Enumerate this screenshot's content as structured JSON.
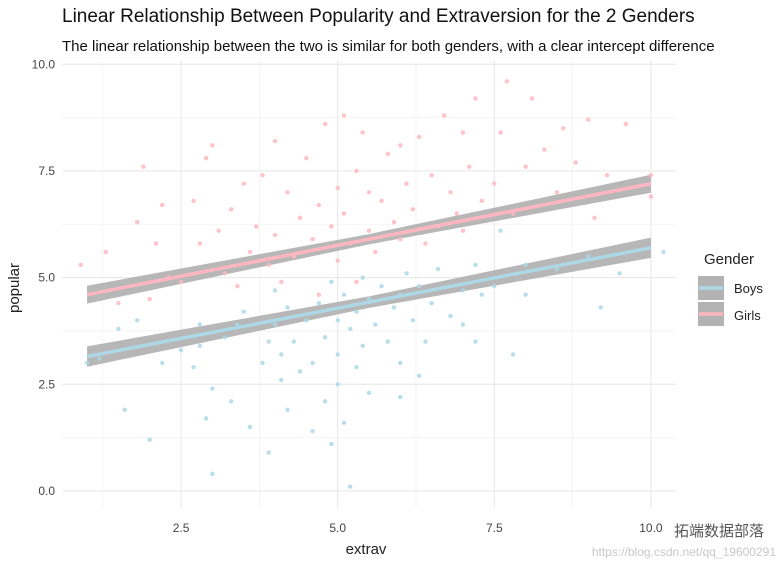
{
  "chart_data": {
    "type": "scatter",
    "title": "Linear Relationship Between Popularity and Extraversion for the 2 Genders",
    "subtitle": "The linear relationship between the two is similar for both genders, with a clear intercept difference",
    "xlabel": "extrav",
    "ylabel": "popular",
    "xlim": [
      0.6,
      10.4
    ],
    "ylim": [
      -0.4,
      10.1
    ],
    "x_ticks": [
      2.5,
      5.0,
      7.5,
      10.0
    ],
    "x_tick_labels": [
      "2.5",
      "5.0",
      "7.5",
      "10.0"
    ],
    "y_ticks": [
      0.0,
      2.5,
      5.0,
      7.5,
      10.0
    ],
    "y_tick_labels": [
      "0.0",
      "2.5",
      "5.0",
      "7.5",
      "10.0"
    ],
    "grid": true,
    "legend": {
      "title": "Gender",
      "position": "right"
    },
    "series": [
      {
        "name": "Boys",
        "color": "#add8e6",
        "fit": {
          "x": [
            1.0,
            10.0
          ],
          "y": [
            3.15,
            5.7
          ],
          "se_band": 0.17
        },
        "points": [
          [
            1.0,
            3.0
          ],
          [
            1.2,
            3.1
          ],
          [
            1.5,
            3.8
          ],
          [
            1.8,
            4.0
          ],
          [
            2.0,
            1.2
          ],
          [
            1.6,
            1.9
          ],
          [
            2.2,
            3.0
          ],
          [
            2.5,
            3.3
          ],
          [
            2.7,
            2.9
          ],
          [
            2.8,
            3.4
          ],
          [
            2.9,
            1.7
          ],
          [
            3.0,
            2.4
          ],
          [
            3.0,
            0.4
          ],
          [
            2.8,
            3.9
          ],
          [
            3.2,
            3.6
          ],
          [
            3.3,
            2.1
          ],
          [
            3.4,
            3.9
          ],
          [
            3.5,
            4.2
          ],
          [
            3.6,
            1.5
          ],
          [
            3.8,
            3.0
          ],
          [
            3.9,
            3.5
          ],
          [
            3.9,
            0.9
          ],
          [
            4.0,
            3.9
          ],
          [
            4.0,
            4.7
          ],
          [
            4.1,
            2.6
          ],
          [
            4.1,
            3.2
          ],
          [
            4.2,
            4.3
          ],
          [
            4.2,
            1.9
          ],
          [
            4.3,
            3.5
          ],
          [
            4.4,
            2.8
          ],
          [
            4.5,
            4.0
          ],
          [
            4.6,
            3.0
          ],
          [
            4.6,
            1.4
          ],
          [
            4.7,
            4.4
          ],
          [
            4.8,
            3.6
          ],
          [
            4.8,
            2.1
          ],
          [
            4.9,
            4.9
          ],
          [
            4.9,
            1.1
          ],
          [
            5.0,
            4.0
          ],
          [
            5.0,
            3.2
          ],
          [
            5.0,
            2.5
          ],
          [
            5.1,
            4.6
          ],
          [
            5.1,
            1.6
          ],
          [
            5.2,
            3.8
          ],
          [
            5.2,
            0.1
          ],
          [
            5.3,
            4.2
          ],
          [
            5.3,
            2.9
          ],
          [
            5.4,
            5.0
          ],
          [
            5.4,
            3.4
          ],
          [
            5.5,
            4.5
          ],
          [
            5.5,
            2.3
          ],
          [
            5.6,
            3.9
          ],
          [
            5.7,
            4.8
          ],
          [
            5.8,
            3.5
          ],
          [
            5.9,
            4.3
          ],
          [
            6.0,
            4.6
          ],
          [
            6.0,
            3.0
          ],
          [
            6.0,
            2.2
          ],
          [
            6.1,
            5.1
          ],
          [
            6.2,
            4.0
          ],
          [
            6.3,
            4.8
          ],
          [
            6.3,
            2.7
          ],
          [
            6.4,
            3.5
          ],
          [
            6.5,
            4.4
          ],
          [
            6.6,
            5.2
          ],
          [
            6.8,
            4.1
          ],
          [
            7.0,
            4.7
          ],
          [
            7.0,
            3.9
          ],
          [
            7.2,
            5.3
          ],
          [
            7.2,
            3.5
          ],
          [
            7.3,
            4.6
          ],
          [
            7.5,
            4.8
          ],
          [
            7.6,
            6.1
          ],
          [
            7.8,
            3.2
          ],
          [
            8.0,
            5.3
          ],
          [
            8.0,
            4.6
          ],
          [
            8.5,
            5.2
          ],
          [
            9.0,
            5.5
          ],
          [
            9.2,
            4.3
          ],
          [
            9.5,
            5.1
          ],
          [
            10.2,
            5.6
          ]
        ]
      },
      {
        "name": "Girls",
        "color": "#ffb6c1",
        "fit": {
          "x": [
            1.0,
            10.0
          ],
          "y": [
            4.6,
            7.2
          ],
          "se_band": 0.15
        },
        "points": [
          [
            0.9,
            5.3
          ],
          [
            1.3,
            5.6
          ],
          [
            1.5,
            4.4
          ],
          [
            1.8,
            6.3
          ],
          [
            1.9,
            7.6
          ],
          [
            2.0,
            4.5
          ],
          [
            2.1,
            5.8
          ],
          [
            2.2,
            6.7
          ],
          [
            2.3,
            5.0
          ],
          [
            2.5,
            4.9
          ],
          [
            2.7,
            6.8
          ],
          [
            2.8,
            5.8
          ],
          [
            2.9,
            7.8
          ],
          [
            3.0,
            8.1
          ],
          [
            3.1,
            6.1
          ],
          [
            3.2,
            5.1
          ],
          [
            3.3,
            6.6
          ],
          [
            3.4,
            4.8
          ],
          [
            3.5,
            7.2
          ],
          [
            3.6,
            5.6
          ],
          [
            3.7,
            6.2
          ],
          [
            3.8,
            7.4
          ],
          [
            3.9,
            5.3
          ],
          [
            4.0,
            8.2
          ],
          [
            4.0,
            6.0
          ],
          [
            4.1,
            4.9
          ],
          [
            4.2,
            7.0
          ],
          [
            4.3,
            5.5
          ],
          [
            4.4,
            6.4
          ],
          [
            4.5,
            7.8
          ],
          [
            4.6,
            5.9
          ],
          [
            4.7,
            6.7
          ],
          [
            4.7,
            4.6
          ],
          [
            4.8,
            8.6
          ],
          [
            4.9,
            6.2
          ],
          [
            5.0,
            7.1
          ],
          [
            5.0,
            5.4
          ],
          [
            5.1,
            8.8
          ],
          [
            5.1,
            6.5
          ],
          [
            5.2,
            5.8
          ],
          [
            5.3,
            7.5
          ],
          [
            5.3,
            4.9
          ],
          [
            5.4,
            8.4
          ],
          [
            5.5,
            6.1
          ],
          [
            5.5,
            7.0
          ],
          [
            5.6,
            5.6
          ],
          [
            5.7,
            6.8
          ],
          [
            5.8,
            7.9
          ],
          [
            5.9,
            6.3
          ],
          [
            6.0,
            8.1
          ],
          [
            6.0,
            5.9
          ],
          [
            6.1,
            7.2
          ],
          [
            6.2,
            6.6
          ],
          [
            6.3,
            8.3
          ],
          [
            6.4,
            5.8
          ],
          [
            6.5,
            7.4
          ],
          [
            6.6,
            6.2
          ],
          [
            6.7,
            8.8
          ],
          [
            6.8,
            7.0
          ],
          [
            6.9,
            6.5
          ],
          [
            7.0,
            8.4
          ],
          [
            7.0,
            6.1
          ],
          [
            7.1,
            7.6
          ],
          [
            7.2,
            9.2
          ],
          [
            7.3,
            6.8
          ],
          [
            7.5,
            7.2
          ],
          [
            7.6,
            8.4
          ],
          [
            7.7,
            9.6
          ],
          [
            7.8,
            6.5
          ],
          [
            8.0,
            7.6
          ],
          [
            8.1,
            9.2
          ],
          [
            8.3,
            8.0
          ],
          [
            8.5,
            7.0
          ],
          [
            8.6,
            8.5
          ],
          [
            8.8,
            7.7
          ],
          [
            9.0,
            8.7
          ],
          [
            9.1,
            6.4
          ],
          [
            9.3,
            7.4
          ],
          [
            9.6,
            8.6
          ],
          [
            10.0,
            7.4
          ],
          [
            10.0,
            6.9
          ]
        ]
      }
    ],
    "band_color": "#b3b3b3"
  },
  "watermark": "https://blog.csdn.net/qq_19600291",
  "brand_text": "拓端数据部落"
}
